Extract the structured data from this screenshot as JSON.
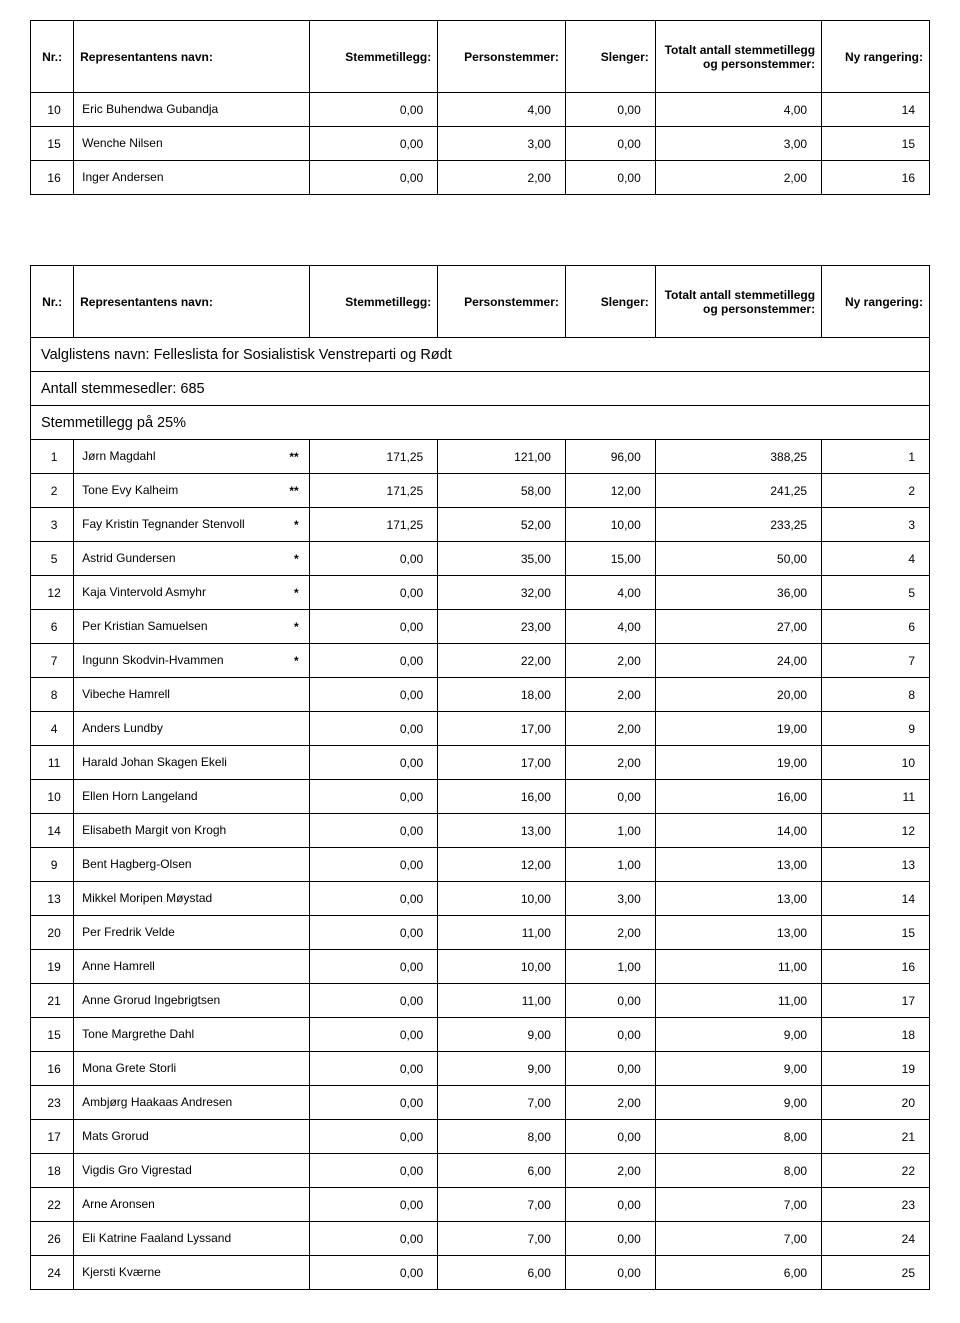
{
  "columns": {
    "nr": "Nr.:",
    "name": "Representantens navn:",
    "stem": "Stemmetillegg:",
    "pers": "Personstemmer:",
    "slen": "Slenger:",
    "tot": "Totalt antall stemmetillegg og personstemmer:",
    "rang": "Ny rangering:"
  },
  "top_rows": [
    {
      "nr": "10",
      "name": "Eric Buhendwa Gubandja",
      "stem": "0,00",
      "pers": "4,00",
      "slen": "0,00",
      "tot": "4,00",
      "rang": "14"
    },
    {
      "nr": "15",
      "name": "Wenche Nilsen",
      "stem": "0,00",
      "pers": "3,00",
      "slen": "0,00",
      "tot": "3,00",
      "rang": "15"
    },
    {
      "nr": "16",
      "name": "Inger Andersen",
      "stem": "0,00",
      "pers": "2,00",
      "slen": "0,00",
      "tot": "2,00",
      "rang": "16"
    }
  ],
  "section": {
    "list_name": "Valglistens navn: Felleslista for Sosialistisk Venstreparti og Rødt",
    "ballots": "Antall stemmesedler: 685",
    "bonus": "Stemmetillegg på 25%"
  },
  "rows": [
    {
      "nr": "1",
      "name": "Jørn Magdahl",
      "mark": "**",
      "stem": "171,25",
      "pers": "121,00",
      "slen": "96,00",
      "tot": "388,25",
      "rang": "1"
    },
    {
      "nr": "2",
      "name": "Tone Evy Kalheim",
      "mark": "**",
      "stem": "171,25",
      "pers": "58,00",
      "slen": "12,00",
      "tot": "241,25",
      "rang": "2"
    },
    {
      "nr": "3",
      "name": "Fay Kristin Tegnander Stenvoll",
      "mark": "*",
      "stem": "171,25",
      "pers": "52,00",
      "slen": "10,00",
      "tot": "233,25",
      "rang": "3"
    },
    {
      "nr": "5",
      "name": "Astrid Gundersen",
      "mark": "*",
      "stem": "0,00",
      "pers": "35,00",
      "slen": "15,00",
      "tot": "50,00",
      "rang": "4"
    },
    {
      "nr": "12",
      "name": "Kaja Vintervold Asmyhr",
      "mark": "*",
      "stem": "0,00",
      "pers": "32,00",
      "slen": "4,00",
      "tot": "36,00",
      "rang": "5"
    },
    {
      "nr": "6",
      "name": "Per Kristian Samuelsen",
      "mark": "*",
      "stem": "0,00",
      "pers": "23,00",
      "slen": "4,00",
      "tot": "27,00",
      "rang": "6"
    },
    {
      "nr": "7",
      "name": "Ingunn Skodvin-Hvammen",
      "mark": "*",
      "stem": "0,00",
      "pers": "22,00",
      "slen": "2,00",
      "tot": "24,00",
      "rang": "7"
    },
    {
      "nr": "8",
      "name": "Vibeche Hamrell",
      "mark": "",
      "stem": "0,00",
      "pers": "18,00",
      "slen": "2,00",
      "tot": "20,00",
      "rang": "8"
    },
    {
      "nr": "4",
      "name": "Anders Lundby",
      "mark": "",
      "stem": "0,00",
      "pers": "17,00",
      "slen": "2,00",
      "tot": "19,00",
      "rang": "9"
    },
    {
      "nr": "11",
      "name": "Harald Johan Skagen Ekeli",
      "mark": "",
      "stem": "0,00",
      "pers": "17,00",
      "slen": "2,00",
      "tot": "19,00",
      "rang": "10"
    },
    {
      "nr": "10",
      "name": "Ellen Horn Langeland",
      "mark": "",
      "stem": "0,00",
      "pers": "16,00",
      "slen": "0,00",
      "tot": "16,00",
      "rang": "11"
    },
    {
      "nr": "14",
      "name": "Elisabeth Margit von Krogh",
      "mark": "",
      "stem": "0,00",
      "pers": "13,00",
      "slen": "1,00",
      "tot": "14,00",
      "rang": "12"
    },
    {
      "nr": "9",
      "name": "Bent Hagberg-Olsen",
      "mark": "",
      "stem": "0,00",
      "pers": "12,00",
      "slen": "1,00",
      "tot": "13,00",
      "rang": "13"
    },
    {
      "nr": "13",
      "name": "Mikkel Moripen Møystad",
      "mark": "",
      "stem": "0,00",
      "pers": "10,00",
      "slen": "3,00",
      "tot": "13,00",
      "rang": "14"
    },
    {
      "nr": "20",
      "name": "Per Fredrik Velde",
      "mark": "",
      "stem": "0,00",
      "pers": "11,00",
      "slen": "2,00",
      "tot": "13,00",
      "rang": "15"
    },
    {
      "nr": "19",
      "name": "Anne Hamrell",
      "mark": "",
      "stem": "0,00",
      "pers": "10,00",
      "slen": "1,00",
      "tot": "11,00",
      "rang": "16"
    },
    {
      "nr": "21",
      "name": "Anne Grorud Ingebrigtsen",
      "mark": "",
      "stem": "0,00",
      "pers": "11,00",
      "slen": "0,00",
      "tot": "11,00",
      "rang": "17"
    },
    {
      "nr": "15",
      "name": "Tone Margrethe Dahl",
      "mark": "",
      "stem": "0,00",
      "pers": "9,00",
      "slen": "0,00",
      "tot": "9,00",
      "rang": "18"
    },
    {
      "nr": "16",
      "name": "Mona Grete Storli",
      "mark": "",
      "stem": "0,00",
      "pers": "9,00",
      "slen": "0,00",
      "tot": "9,00",
      "rang": "19"
    },
    {
      "nr": "23",
      "name": "Ambjørg Haakaas Andresen",
      "mark": "",
      "stem": "0,00",
      "pers": "7,00",
      "slen": "2,00",
      "tot": "9,00",
      "rang": "20"
    },
    {
      "nr": "17",
      "name": "Mats Grorud",
      "mark": "",
      "stem": "0,00",
      "pers": "8,00",
      "slen": "0,00",
      "tot": "8,00",
      "rang": "21"
    },
    {
      "nr": "18",
      "name": "Vigdis Gro Vigrestad",
      "mark": "",
      "stem": "0,00",
      "pers": "6,00",
      "slen": "2,00",
      "tot": "8,00",
      "rang": "22"
    },
    {
      "nr": "22",
      "name": "Arne Aronsen",
      "mark": "",
      "stem": "0,00",
      "pers": "7,00",
      "slen": "0,00",
      "tot": "7,00",
      "rang": "23"
    },
    {
      "nr": "26",
      "name": "Eli Katrine Faaland Lyssand",
      "mark": "",
      "stem": "0,00",
      "pers": "7,00",
      "slen": "0,00",
      "tot": "7,00",
      "rang": "24"
    },
    {
      "nr": "24",
      "name": "Kjersti Kværne",
      "mark": "",
      "stem": "0,00",
      "pers": "6,00",
      "slen": "0,00",
      "tot": "6,00",
      "rang": "25"
    }
  ]
}
